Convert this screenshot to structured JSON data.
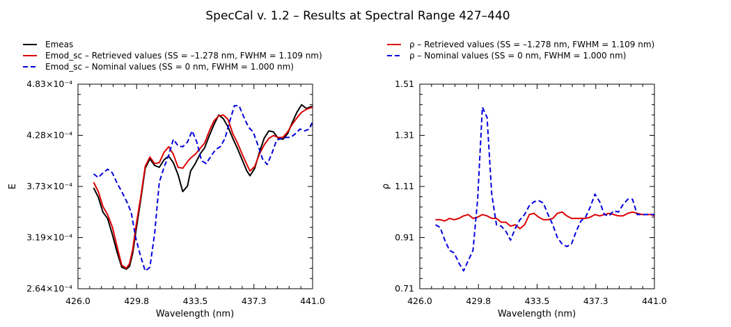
{
  "title": "SpecCal v. 1.2 – Results at Spectral Range 427–440",
  "colors": {
    "measured": "#000000",
    "retrieved": "#dd0000",
    "nominal": "#0000dd",
    "frame": "#000000"
  },
  "chart_data": [
    {
      "type": "line",
      "xlabel": "Wavelength (nm)",
      "ylabel": "E",
      "xlim": [
        426.0,
        441.0
      ],
      "ylim": [
        0.000264,
        0.000483
      ],
      "xticks": [
        "426.0",
        "429.8",
        "433.5",
        "437.3",
        "441.0"
      ],
      "yticks": [
        "2.64×10⁻⁴",
        "3.19×10⁻⁴",
        "3.73×10⁻⁴",
        "4.28×10⁻⁴",
        "4.83×10⁻⁴"
      ],
      "legend": [
        "Emeas",
        "Emod_sc – Retrieved values (SS = –1.278 nm, FWHM =  1.109 nm)",
        "Emod_sc – Nominal values (SS = 0 nm, FWHM =  1.000 nm)"
      ],
      "series": [
        {
          "name": "Emeas",
          "style": "solid",
          "color": "#000000",
          "x": [
            427.0,
            427.3,
            427.6,
            427.9,
            428.2,
            428.5,
            428.8,
            429.1,
            429.3,
            429.5,
            429.7,
            430.0,
            430.3,
            430.6,
            430.9,
            431.2,
            431.5,
            431.8,
            432.1,
            432.4,
            432.7,
            433.0,
            433.2,
            433.5,
            433.8,
            434.1,
            434.4,
            434.7,
            435.0,
            435.3,
            435.6,
            435.9,
            436.2,
            436.5,
            436.8,
            437.0,
            437.3,
            437.6,
            437.9,
            438.2,
            438.5,
            438.8,
            439.1,
            439.4,
            439.7,
            440.0,
            440.3,
            440.6,
            440.9,
            441.0
          ],
          "y": [
            0.000372,
            0.000362,
            0.000346,
            0.000339,
            0.000322,
            0.000303,
            0.000287,
            0.000285,
            0.000288,
            0.000302,
            0.000325,
            0.000358,
            0.000393,
            0.000403,
            0.000396,
            0.000394,
            0.000402,
            0.000406,
            0.000399,
            0.000386,
            0.000368,
            0.000374,
            0.00039,
            0.000398,
            0.000408,
            0.000415,
            0.000428,
            0.00044,
            0.00045,
            0.000446,
            0.000437,
            0.000425,
            0.000414,
            0.000402,
            0.00039,
            0.000385,
            0.000393,
            0.00041,
            0.000425,
            0.000433,
            0.000432,
            0.000425,
            0.000424,
            0.00043,
            0.000442,
            0.000453,
            0.000461,
            0.000457,
            0.000459,
            0.000459
          ]
        },
        {
          "name": "Emod_sc – Retrieved values",
          "style": "solid",
          "color": "#dd0000",
          "x": [
            427.0,
            427.3,
            427.6,
            427.9,
            428.2,
            428.5,
            428.8,
            429.1,
            429.3,
            429.5,
            429.7,
            430.0,
            430.3,
            430.6,
            430.9,
            431.2,
            431.5,
            431.8,
            432.1,
            432.4,
            432.7,
            433.0,
            433.2,
            433.5,
            433.8,
            434.1,
            434.4,
            434.7,
            435.0,
            435.3,
            435.6,
            435.9,
            436.2,
            436.5,
            436.8,
            437.0,
            437.3,
            437.6,
            437.9,
            438.2,
            438.5,
            438.8,
            439.1,
            439.4,
            439.7,
            440.0,
            440.3,
            440.6,
            440.9,
            441.0
          ],
          "y": [
            0.000378,
            0.000368,
            0.000352,
            0.000343,
            0.00033,
            0.000309,
            0.000289,
            0.000286,
            0.000291,
            0.000306,
            0.00033,
            0.000361,
            0.000395,
            0.000405,
            0.000398,
            0.000399,
            0.00041,
            0.000416,
            0.000408,
            0.000394,
            0.000393,
            0.0004,
            0.000404,
            0.000408,
            0.000414,
            0.00042,
            0.000433,
            0.000444,
            0.000449,
            0.00045,
            0.000445,
            0.00043,
            0.00042,
            0.000408,
            0.000397,
            0.00039,
            0.000395,
            0.000408,
            0.000418,
            0.000425,
            0.000428,
            0.000426,
            0.000426,
            0.000432,
            0.00044,
            0.000447,
            0.000453,
            0.000456,
            0.000458,
            0.000458
          ]
        },
        {
          "name": "Emod_sc – Nominal values",
          "style": "dashed",
          "color": "#0000dd",
          "x": [
            427.0,
            427.3,
            427.6,
            427.9,
            428.2,
            428.5,
            428.8,
            429.1,
            429.4,
            429.7,
            430.0,
            430.3,
            430.6,
            430.9,
            431.2,
            431.5,
            431.8,
            432.1,
            432.4,
            432.7,
            433.0,
            433.3,
            433.6,
            433.9,
            434.2,
            434.5,
            434.8,
            435.1,
            435.4,
            435.7,
            436.0,
            436.3,
            436.6,
            436.9,
            437.2,
            437.5,
            437.8,
            438.1,
            438.4,
            438.7,
            439.0,
            439.3,
            439.6,
            439.9,
            440.2,
            440.5,
            440.8,
            441.0
          ],
          "y": [
            0.000387,
            0.000383,
            0.000388,
            0.000392,
            0.000388,
            0.000377,
            0.000368,
            0.000358,
            0.000346,
            0.000318,
            0.000299,
            0.000283,
            0.000287,
            0.000323,
            0.000378,
            0.000394,
            0.000407,
            0.000424,
            0.000417,
            0.000416,
            0.000421,
            0.000433,
            0.000421,
            0.000401,
            0.000398,
            0.000406,
            0.000413,
            0.000416,
            0.000425,
            0.000443,
            0.00046,
            0.00046,
            0.000448,
            0.000437,
            0.000432,
            0.000418,
            0.000403,
            0.000397,
            0.000409,
            0.000423,
            0.000425,
            0.000426,
            0.000426,
            0.00043,
            0.000435,
            0.000433,
            0.000435,
            0.000443
          ]
        }
      ]
    },
    {
      "type": "line",
      "xlabel": "Wavelength (nm)",
      "ylabel": "ρ",
      "xlim": [
        426.0,
        441.0
      ],
      "ylim": [
        0.71,
        1.51
      ],
      "xticks": [
        "426.0",
        "429.8",
        "433.5",
        "437.3",
        "441.0"
      ],
      "yticks": [
        "0.71",
        "0.91",
        "1.11",
        "1.31",
        "1.51"
      ],
      "legend": [
        "ρ – Retrieved values (SS = –1.278 nm, FWHM =  1.109 nm)",
        "ρ – Nominal values (SS = 0 nm, FWHM =  1.000 nm)"
      ],
      "series": [
        {
          "name": "ρ – Retrieved values",
          "style": "solid",
          "color": "#dd0000",
          "x": [
            427.0,
            427.3,
            427.6,
            427.9,
            428.2,
            428.5,
            428.8,
            429.1,
            429.4,
            429.7,
            430.0,
            430.3,
            430.6,
            430.9,
            431.2,
            431.5,
            431.8,
            432.1,
            432.4,
            432.7,
            433.0,
            433.3,
            433.6,
            433.9,
            434.2,
            434.5,
            434.8,
            435.1,
            435.4,
            435.7,
            436.0,
            436.3,
            436.6,
            436.9,
            437.2,
            437.5,
            437.8,
            438.1,
            438.4,
            438.7,
            439.0,
            439.3,
            439.6,
            439.9,
            440.2,
            440.5,
            440.8,
            441.0
          ],
          "y": [
            0.98,
            0.98,
            0.975,
            0.985,
            0.98,
            0.985,
            0.995,
            1.0,
            0.985,
            0.99,
            1.0,
            0.995,
            0.985,
            0.985,
            0.97,
            0.97,
            0.955,
            0.96,
            0.945,
            0.96,
            1.0,
            1.005,
            0.99,
            0.98,
            0.98,
            0.985,
            1.005,
            1.01,
            0.995,
            0.985,
            0.985,
            0.985,
            0.985,
            0.99,
            1.0,
            0.995,
            1.0,
            1.005,
            1.0,
            0.995,
            0.995,
            1.005,
            1.01,
            1.005,
            1.0,
            1.0,
            1.0,
            0.995
          ]
        },
        {
          "name": "ρ – Nominal values",
          "style": "dashed",
          "color": "#0000dd",
          "x": [
            427.0,
            427.3,
            427.6,
            427.9,
            428.2,
            428.5,
            428.8,
            429.1,
            429.4,
            429.7,
            430.0,
            430.3,
            430.6,
            430.9,
            431.2,
            431.5,
            431.8,
            432.1,
            432.4,
            432.7,
            433.0,
            433.3,
            433.6,
            433.9,
            434.2,
            434.5,
            434.8,
            435.1,
            435.4,
            435.7,
            436.0,
            436.3,
            436.6,
            436.9,
            437.2,
            437.5,
            437.8,
            438.1,
            438.4,
            438.7,
            439.0,
            439.3,
            439.6,
            439.9,
            440.2,
            440.5,
            440.8,
            441.0
          ],
          "y": [
            0.96,
            0.95,
            0.9,
            0.86,
            0.85,
            0.81,
            0.78,
            0.82,
            0.86,
            1.06,
            1.42,
            1.38,
            1.08,
            0.96,
            0.955,
            0.935,
            0.9,
            0.945,
            0.98,
            1.0,
            1.035,
            1.05,
            1.055,
            1.045,
            1.0,
            0.96,
            0.91,
            0.885,
            0.875,
            0.885,
            0.935,
            0.975,
            0.99,
            1.03,
            1.08,
            1.05,
            1.0,
            0.995,
            1.015,
            1.01,
            1.04,
            1.06,
            1.06,
            1.0,
            1.0,
            1.0,
            1.0,
            1.0
          ]
        }
      ]
    }
  ]
}
